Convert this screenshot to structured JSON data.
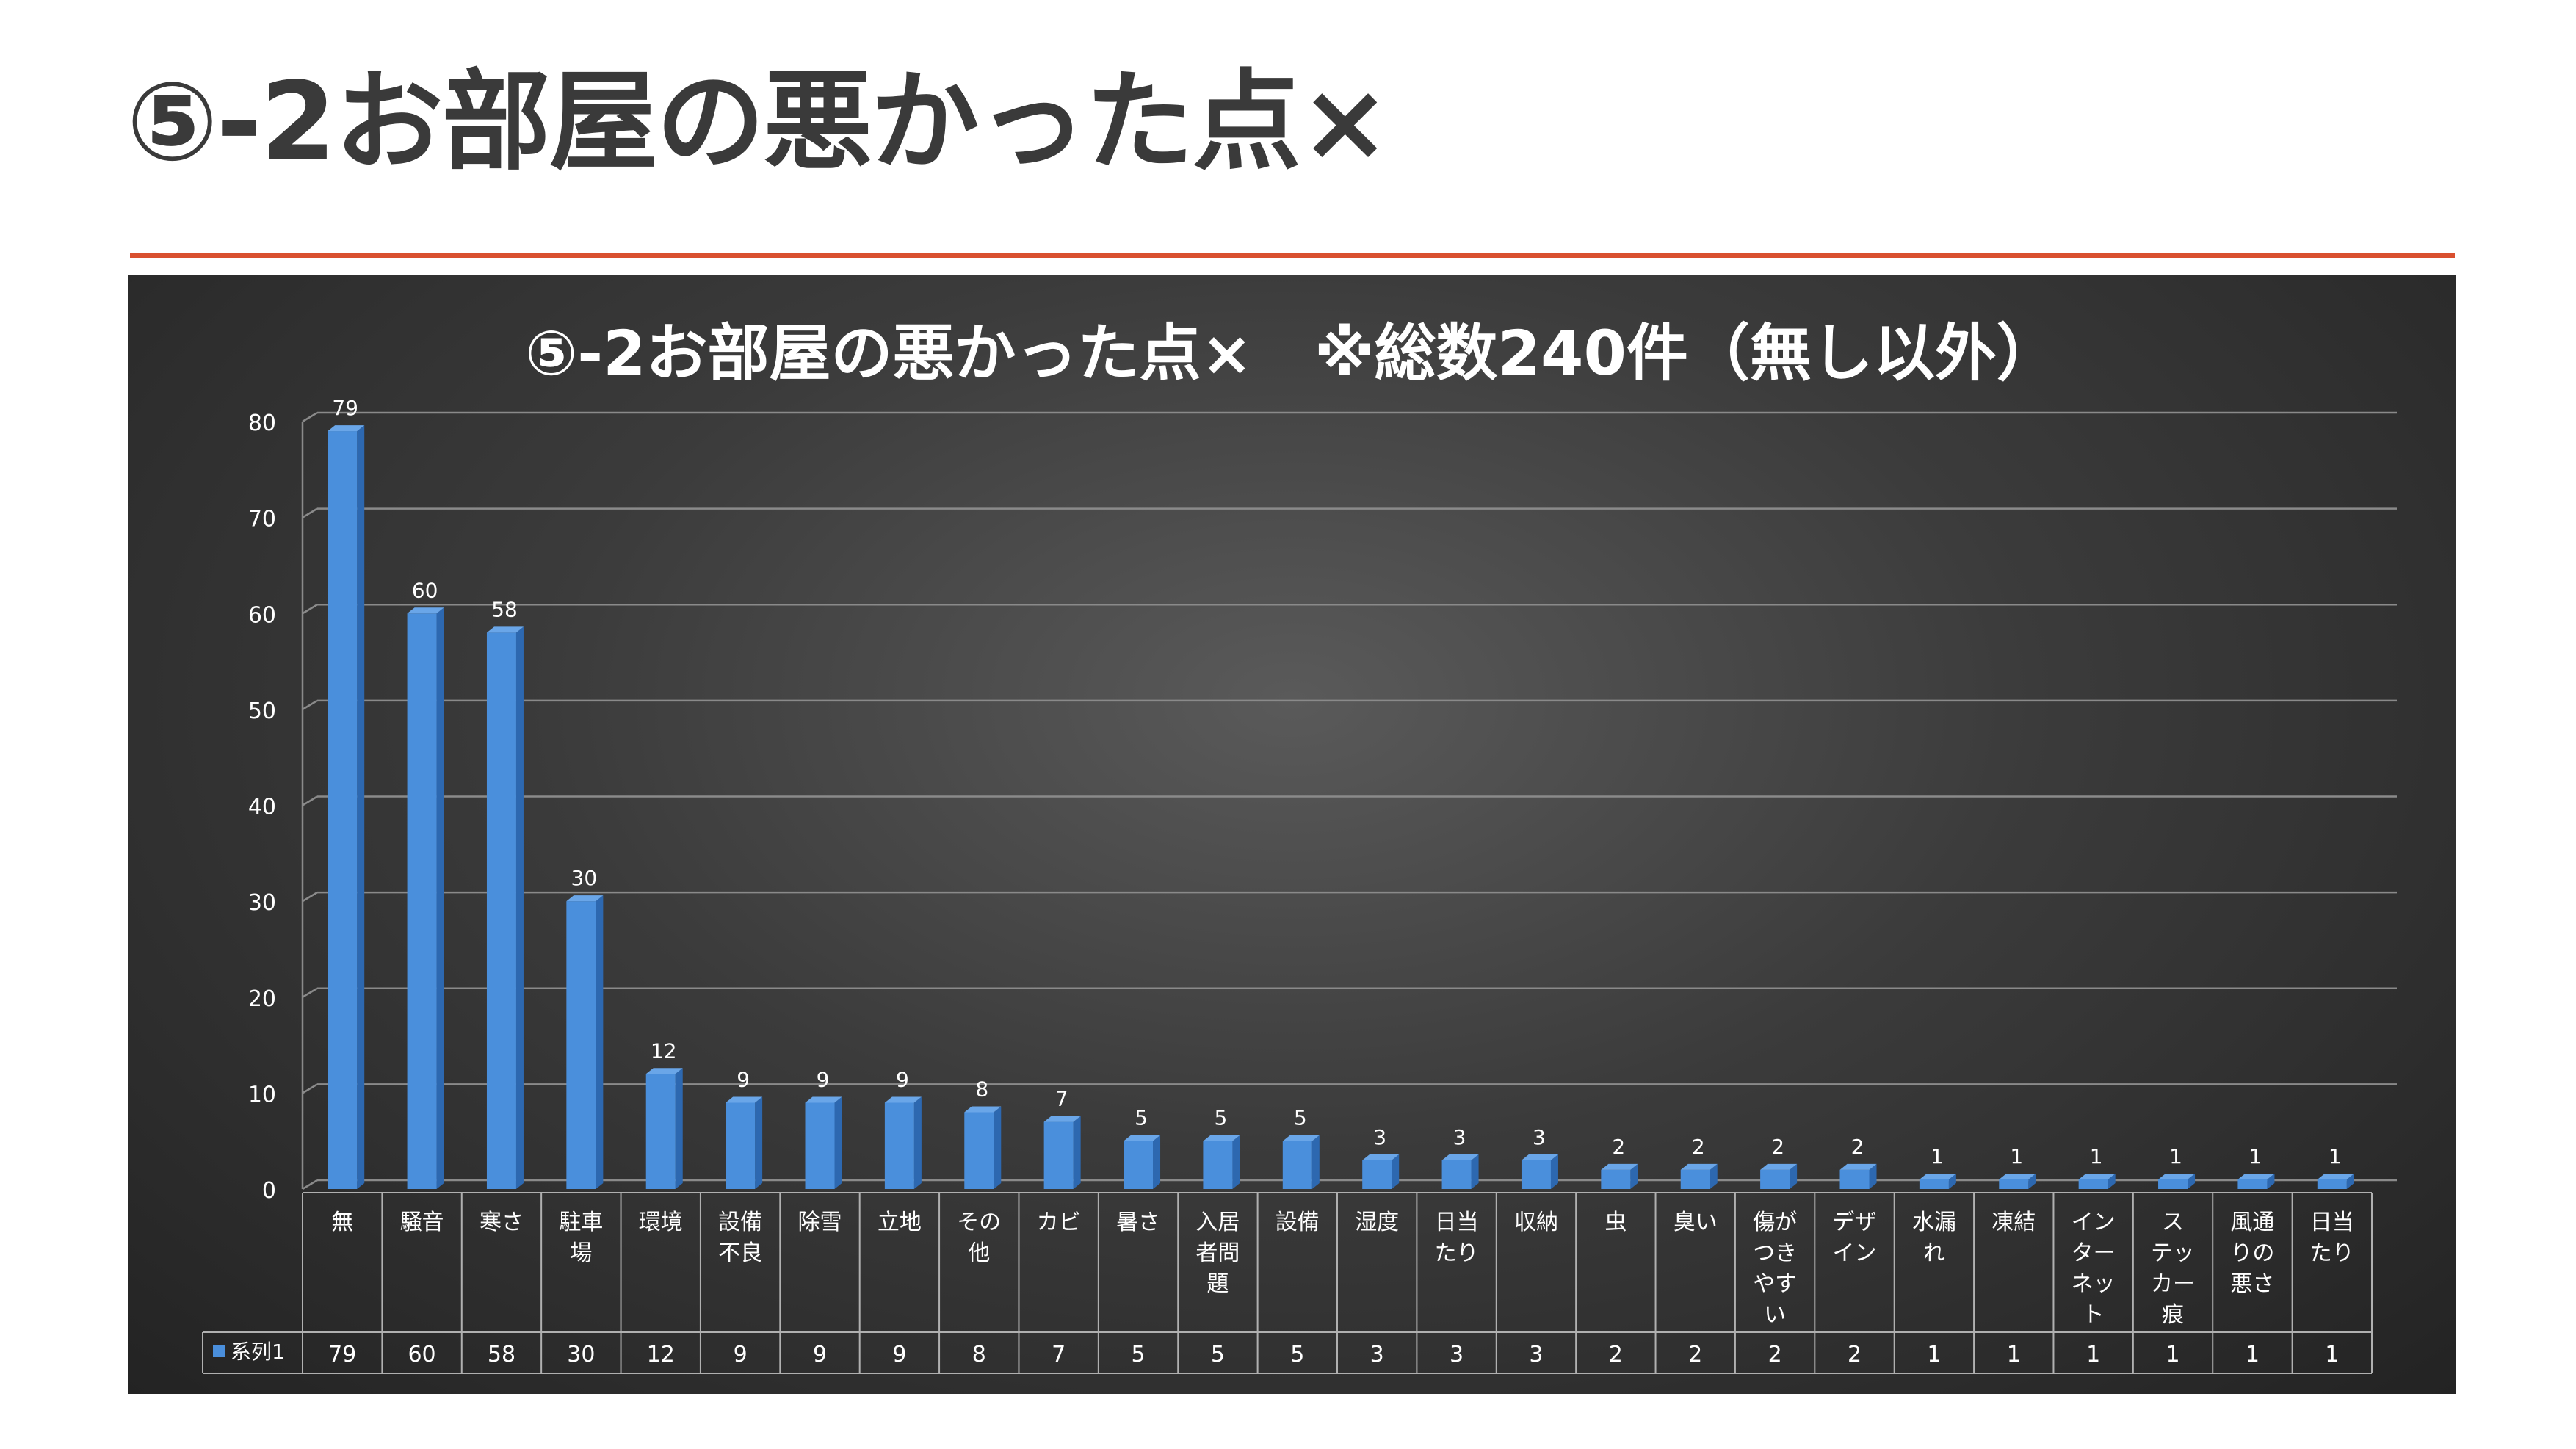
{
  "page": {
    "title": "⑤-2お部屋の悪かった点×"
  },
  "chart_data": {
    "type": "bar",
    "title": "⑤-2お部屋の悪かった点×　※総数240件（無し以外）",
    "categories": [
      "無",
      "騒音",
      "寒さ",
      "駐車場",
      "環境",
      "設備不良",
      "除雪",
      "立地",
      "その他",
      "カビ",
      "暑さ",
      "入居者問題",
      "設備",
      "湿度",
      "日当たり",
      "収納",
      "虫",
      "臭い",
      "傷がつきやすい",
      "デザイン",
      "水漏れ",
      "凍結",
      "インターネット",
      "ステッカー痕",
      "風通りの悪さ",
      "日当たり"
    ],
    "category_lines": [
      [
        "無"
      ],
      [
        "騒音"
      ],
      [
        "寒さ"
      ],
      [
        "駐車",
        "場"
      ],
      [
        "環境"
      ],
      [
        "設備",
        "不良"
      ],
      [
        "除雪"
      ],
      [
        "立地"
      ],
      [
        "その",
        "他"
      ],
      [
        "カビ"
      ],
      [
        "暑さ"
      ],
      [
        "入居",
        "者問",
        "題"
      ],
      [
        "設備"
      ],
      [
        "湿度"
      ],
      [
        "日当",
        "たり"
      ],
      [
        "収納"
      ],
      [
        "虫"
      ],
      [
        "臭い"
      ],
      [
        "傷が",
        "つき",
        "やす",
        "い"
      ],
      [
        "デザ",
        "イン"
      ],
      [
        "水漏",
        "れ"
      ],
      [
        "凍結"
      ],
      [
        "イン",
        "ター",
        "ネッ",
        "ト"
      ],
      [
        "ス",
        "テッ",
        "カー",
        "痕"
      ],
      [
        "風通",
        "りの",
        "悪さ"
      ],
      [
        "日当",
        "たり"
      ]
    ],
    "series": [
      {
        "name": "系列1",
        "values": [
          79,
          60,
          58,
          30,
          12,
          9,
          9,
          9,
          8,
          7,
          5,
          5,
          5,
          3,
          3,
          3,
          2,
          2,
          2,
          2,
          1,
          1,
          1,
          1,
          1,
          1
        ]
      }
    ],
    "ylim": [
      0,
      80
    ],
    "yticks": [
      0,
      10,
      20,
      30,
      40,
      50,
      60,
      70,
      80
    ],
    "grid": true,
    "data_table": true,
    "colors": {
      "bar": "#4a8fdc",
      "bar_side": "#2d68b0",
      "bar_top": "#6aa6e8",
      "grid": "#8a8a8a",
      "text": "#ffffff",
      "panel": "#3b3b3b",
      "rule": "#d9502f"
    }
  }
}
